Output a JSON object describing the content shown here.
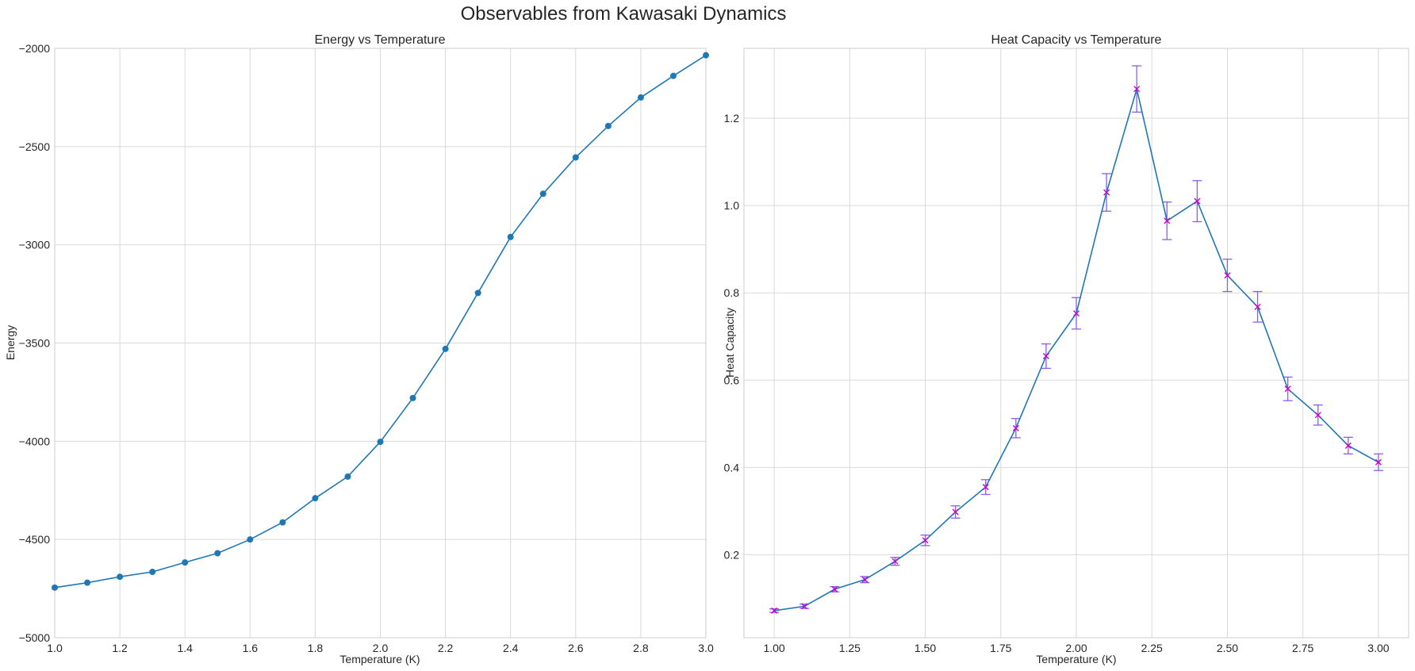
{
  "figure": {
    "suptitle": "Observables from Kawasaki Dynamics"
  },
  "chart_data": [
    {
      "type": "line",
      "title": "Energy vs Temperature",
      "xlabel": "Temperature (K)",
      "ylabel": "Energy",
      "xlim": [
        1.0,
        3.0
      ],
      "ylim": [
        -5000,
        -2000
      ],
      "xticks": [
        1.0,
        1.2,
        1.4,
        1.6,
        1.8,
        2.0,
        2.2,
        2.4,
        2.6,
        2.8,
        3.0
      ],
      "xtick_labels": [
        "1.0",
        "1.2",
        "1.4",
        "1.6",
        "1.8",
        "2.0",
        "2.2",
        "2.4",
        "2.6",
        "2.8",
        "3.0"
      ],
      "yticks": [
        -5000,
        -4500,
        -4000,
        -3500,
        -3000,
        -2500,
        -2000
      ],
      "ytick_labels": [
        "−5000",
        "−4500",
        "−4000",
        "−3500",
        "−3000",
        "−2500",
        "−2000"
      ],
      "grid": true,
      "marker": "circle",
      "color": "#1f77b4",
      "x": [
        1.0,
        1.1,
        1.2,
        1.3,
        1.4,
        1.5,
        1.6,
        1.7,
        1.8,
        1.9,
        2.0,
        2.1,
        2.2,
        2.3,
        2.4,
        2.5,
        2.6,
        2.7,
        2.8,
        2.9,
        3.0
      ],
      "y": [
        -4745,
        -4720,
        -4690,
        -4665,
        -4617,
        -4570,
        -4500,
        -4413,
        -4290,
        -4180,
        -4003,
        -3780,
        -3530,
        -3245,
        -2960,
        -2740,
        -2555,
        -2395,
        -2250,
        -2140,
        -2035
      ]
    },
    {
      "type": "line",
      "title": "Heat Capacity vs Temperature",
      "xlabel": "Temperature (K)",
      "ylabel": "Heat Capacity",
      "xlim": [
        0.9,
        3.1
      ],
      "ylim": [
        0.01,
        1.36
      ],
      "xticks": [
        1.0,
        1.25,
        1.5,
        1.75,
        2.0,
        2.25,
        2.5,
        2.75,
        3.0
      ],
      "xtick_labels": [
        "1.00",
        "1.25",
        "1.50",
        "1.75",
        "2.00",
        "2.25",
        "2.50",
        "2.75",
        "3.00"
      ],
      "yticks": [
        0.2,
        0.4,
        0.6,
        0.8,
        1.0,
        1.2
      ],
      "ytick_labels": [
        "0.2",
        "0.4",
        "0.6",
        "0.8",
        "1.0",
        "1.2"
      ],
      "grid": true,
      "marker": "x",
      "color": "#1f77b4",
      "marker_color": "#cc00cc",
      "errorbar_color": "#8a5cf0",
      "x": [
        1.0,
        1.1,
        1.2,
        1.3,
        1.4,
        1.5,
        1.6,
        1.7,
        1.8,
        1.9,
        2.0,
        2.1,
        2.2,
        2.3,
        2.4,
        2.5,
        2.6,
        2.7,
        2.8,
        2.9,
        3.0
      ],
      "y": [
        0.072,
        0.082,
        0.121,
        0.143,
        0.185,
        0.233,
        0.298,
        0.355,
        0.49,
        0.655,
        0.753,
        1.03,
        1.267,
        0.965,
        1.01,
        0.84,
        0.768,
        0.58,
        0.52,
        0.45,
        0.412
      ],
      "yerr": [
        0.004,
        0.005,
        0.006,
        0.007,
        0.009,
        0.012,
        0.014,
        0.017,
        0.022,
        0.028,
        0.036,
        0.043,
        0.053,
        0.043,
        0.047,
        0.037,
        0.035,
        0.027,
        0.023,
        0.019,
        0.019
      ]
    }
  ]
}
